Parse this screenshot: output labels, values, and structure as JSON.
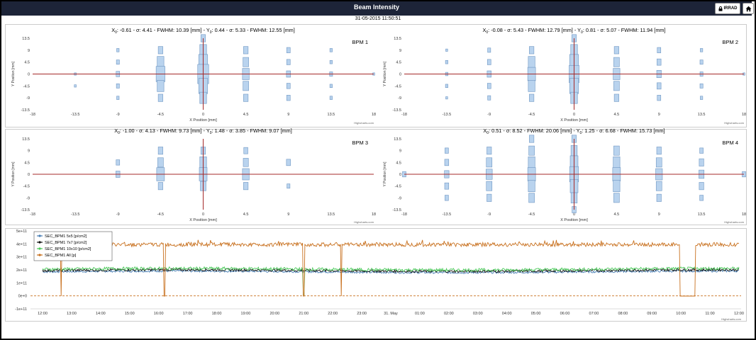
{
  "header": {
    "title": "Beam Intensity",
    "irrad_label": "IRRAD",
    "timestamp": "31-05-2015 11:50:51"
  },
  "credit": "Highcharts.com",
  "bpm_axes": {
    "xlabel": "X Position [mm]",
    "ylabel": "Y Position [mm]",
    "xticks": [
      "-18",
      "-13.5",
      "-9",
      "-4.5",
      "0",
      "4.5",
      "9",
      "13.5",
      "18"
    ],
    "yticks": [
      "13.5",
      "9",
      "4.5",
      "0",
      "-4.5",
      "-9",
      "-13.5"
    ],
    "xlim": [
      -18,
      18
    ],
    "ylim": [
      -13.5,
      13.5
    ],
    "marker_color": "#b9d3ee",
    "axis_line_color": "#a52a2a"
  },
  "chart_data": [
    {
      "type": "scatter",
      "name": "BPM 1",
      "stats": {
        "x0": "-0.61",
        "sx": "4.41",
        "fx": "10.39",
        "y0": "0.44",
        "sy": "5.33",
        "fy": "12.55"
      },
      "xlabel": "X Position [mm]",
      "ylabel": "Y Position [mm]",
      "xlim": [
        -18,
        18
      ],
      "ylim": [
        -13.5,
        13.5
      ],
      "points": [
        {
          "x": -13.5,
          "y": -4.5,
          "v": 0.5
        },
        {
          "x": -13.5,
          "y": 0,
          "v": 0.5
        },
        {
          "x": -9,
          "y": 9,
          "v": 1
        },
        {
          "x": -9,
          "y": 4.5,
          "v": 1.5
        },
        {
          "x": -9,
          "y": 0,
          "v": 2
        },
        {
          "x": -9,
          "y": -4.5,
          "v": 1.5
        },
        {
          "x": -9,
          "y": -9,
          "v": 1
        },
        {
          "x": -4.5,
          "y": 9,
          "v": 3
        },
        {
          "x": -4.5,
          "y": 4.5,
          "v": 5
        },
        {
          "x": -4.5,
          "y": 0,
          "v": 7
        },
        {
          "x": -4.5,
          "y": -4.5,
          "v": 5
        },
        {
          "x": -4.5,
          "y": -9,
          "v": 3
        },
        {
          "x": 0,
          "y": 13.5,
          "v": 3
        },
        {
          "x": 0,
          "y": 9,
          "v": 5
        },
        {
          "x": 0,
          "y": 4.5,
          "v": 7
        },
        {
          "x": 0,
          "y": 0,
          "v": 9
        },
        {
          "x": 0,
          "y": -4.5,
          "v": 7
        },
        {
          "x": 0,
          "y": -9,
          "v": 5
        },
        {
          "x": 4.5,
          "y": 9,
          "v": 3
        },
        {
          "x": 4.5,
          "y": 4.5,
          "v": 4
        },
        {
          "x": 4.5,
          "y": 0,
          "v": 5
        },
        {
          "x": 4.5,
          "y": -4.5,
          "v": 4
        },
        {
          "x": 4.5,
          "y": -9,
          "v": 3
        },
        {
          "x": 9,
          "y": 9,
          "v": 2
        },
        {
          "x": 9,
          "y": 4.5,
          "v": 2
        },
        {
          "x": 9,
          "y": 0,
          "v": 2.5
        },
        {
          "x": 9,
          "y": -4.5,
          "v": 2
        },
        {
          "x": 9,
          "y": -9,
          "v": 2
        },
        {
          "x": 13.5,
          "y": 9,
          "v": 1
        },
        {
          "x": 13.5,
          "y": 4.5,
          "v": 1
        },
        {
          "x": 13.5,
          "y": 0,
          "v": 1.5
        },
        {
          "x": 13.5,
          "y": -4.5,
          "v": 1
        },
        {
          "x": 13.5,
          "y": -9,
          "v": 1
        },
        {
          "x": 18,
          "y": 0,
          "v": 0.5
        }
      ]
    },
    {
      "type": "scatter",
      "name": "BPM 2",
      "stats": {
        "x0": "-0.08",
        "sx": "5.43",
        "fx": "12.79",
        "y0": "0.81",
        "sy": "5.07",
        "fy": "11.94"
      },
      "xlabel": "X Position [mm]",
      "ylabel": "Y Position [mm]",
      "xlim": [
        -18,
        18
      ],
      "ylim": [
        -13.5,
        13.5
      ],
      "points": [
        {
          "x": -13.5,
          "y": 9,
          "v": 0.5
        },
        {
          "x": -13.5,
          "y": 4.5,
          "v": 1
        },
        {
          "x": -13.5,
          "y": 0,
          "v": 1
        },
        {
          "x": -13.5,
          "y": -4.5,
          "v": 1
        },
        {
          "x": -13.5,
          "y": -9,
          "v": 0.5
        },
        {
          "x": -9,
          "y": 9,
          "v": 1.5
        },
        {
          "x": -9,
          "y": 4.5,
          "v": 2
        },
        {
          "x": -9,
          "y": 0,
          "v": 2.5
        },
        {
          "x": -9,
          "y": -4.5,
          "v": 2
        },
        {
          "x": -9,
          "y": -9,
          "v": 1.5
        },
        {
          "x": -4.5,
          "y": 9,
          "v": 3
        },
        {
          "x": -4.5,
          "y": 4.5,
          "v": 5
        },
        {
          "x": -4.5,
          "y": 0,
          "v": 6
        },
        {
          "x": -4.5,
          "y": -4.5,
          "v": 5
        },
        {
          "x": -4.5,
          "y": -9,
          "v": 3
        },
        {
          "x": 0,
          "y": 13.5,
          "v": 3
        },
        {
          "x": 0,
          "y": 9,
          "v": 5
        },
        {
          "x": 0,
          "y": 4.5,
          "v": 7
        },
        {
          "x": 0,
          "y": 0,
          "v": 8
        },
        {
          "x": 0,
          "y": -4.5,
          "v": 7
        },
        {
          "x": 0,
          "y": -9,
          "v": 5
        },
        {
          "x": 4.5,
          "y": 9,
          "v": 3
        },
        {
          "x": 4.5,
          "y": 4.5,
          "v": 4
        },
        {
          "x": 4.5,
          "y": 0,
          "v": 5
        },
        {
          "x": 4.5,
          "y": -4.5,
          "v": 4
        },
        {
          "x": 4.5,
          "y": -9,
          "v": 3
        },
        {
          "x": 9,
          "y": 9,
          "v": 2
        },
        {
          "x": 9,
          "y": 4.5,
          "v": 2.5
        },
        {
          "x": 9,
          "y": 0,
          "v": 3
        },
        {
          "x": 9,
          "y": -4.5,
          "v": 2.5
        },
        {
          "x": 9,
          "y": -9,
          "v": 2
        },
        {
          "x": 13.5,
          "y": 9,
          "v": 1
        },
        {
          "x": 13.5,
          "y": 4.5,
          "v": 1.5
        },
        {
          "x": 13.5,
          "y": 0,
          "v": 1.5
        },
        {
          "x": 13.5,
          "y": -4.5,
          "v": 1.5
        },
        {
          "x": 13.5,
          "y": -9,
          "v": 1
        },
        {
          "x": 18,
          "y": 0,
          "v": 0.5
        }
      ]
    },
    {
      "type": "scatter",
      "name": "BPM 3",
      "stats": {
        "x0": "-1.00",
        "sx": "4.13",
        "fx": "9.73",
        "y0": "1.48",
        "sy": "3.85",
        "fy": "9.07"
      },
      "xlabel": "X Position [mm]",
      "ylabel": "Y Position [mm]",
      "xlim": [
        -18,
        18
      ],
      "ylim": [
        -13.5,
        13.5
      ],
      "points": [
        {
          "x": -9,
          "y": 4.5,
          "v": 2
        },
        {
          "x": -9,
          "y": 0,
          "v": 2.5
        },
        {
          "x": -4.5,
          "y": 9,
          "v": 3
        },
        {
          "x": -4.5,
          "y": 4.5,
          "v": 4
        },
        {
          "x": -4.5,
          "y": 0,
          "v": 6
        },
        {
          "x": -4.5,
          "y": -4.5,
          "v": 3
        },
        {
          "x": 0,
          "y": 9,
          "v": 3
        },
        {
          "x": 0,
          "y": 4.5,
          "v": 5
        },
        {
          "x": 0,
          "y": 0,
          "v": 6
        },
        {
          "x": 0,
          "y": -4.5,
          "v": 4
        },
        {
          "x": 4.5,
          "y": 9,
          "v": 2.5
        },
        {
          "x": 4.5,
          "y": 4.5,
          "v": 3.5
        },
        {
          "x": 4.5,
          "y": 0,
          "v": 5
        },
        {
          "x": 4.5,
          "y": -4.5,
          "v": 3
        },
        {
          "x": 9,
          "y": 4.5,
          "v": 2.5
        },
        {
          "x": 9,
          "y": -4.5,
          "v": 1.5
        }
      ]
    },
    {
      "type": "scatter",
      "name": "BPM 4",
      "stats": {
        "x0": "0.51",
        "sx": "8.52",
        "fx": "20.06",
        "y0": "1.25",
        "sy": "6.68",
        "fy": "15.73"
      },
      "xlabel": "X Position [mm]",
      "ylabel": "Y Position [mm]",
      "xlim": [
        -18,
        18
      ],
      "ylim": [
        -13.5,
        13.5
      ],
      "points": [
        {
          "x": -18,
          "y": 0,
          "v": 2
        },
        {
          "x": -13.5,
          "y": 9,
          "v": 2
        },
        {
          "x": -13.5,
          "y": 4.5,
          "v": 2.5
        },
        {
          "x": -13.5,
          "y": 0,
          "v": 3
        },
        {
          "x": -13.5,
          "y": -4.5,
          "v": 2.5
        },
        {
          "x": -13.5,
          "y": -9,
          "v": 2
        },
        {
          "x": -9,
          "y": 9,
          "v": 3
        },
        {
          "x": -9,
          "y": 4.5,
          "v": 4
        },
        {
          "x": -9,
          "y": 0,
          "v": 4.5
        },
        {
          "x": -9,
          "y": -4.5,
          "v": 4
        },
        {
          "x": -9,
          "y": -9,
          "v": 3
        },
        {
          "x": -4.5,
          "y": 13.5,
          "v": 3
        },
        {
          "x": -4.5,
          "y": 9,
          "v": 4
        },
        {
          "x": -4.5,
          "y": 4.5,
          "v": 5
        },
        {
          "x": -4.5,
          "y": 0,
          "v": 6
        },
        {
          "x": -4.5,
          "y": -4.5,
          "v": 5
        },
        {
          "x": -4.5,
          "y": -9,
          "v": 4
        },
        {
          "x": 0,
          "y": 13.5,
          "v": 3
        },
        {
          "x": 0,
          "y": 9,
          "v": 4.5
        },
        {
          "x": 0,
          "y": 4.5,
          "v": 6
        },
        {
          "x": 0,
          "y": 0,
          "v": 7
        },
        {
          "x": 0,
          "y": -4.5,
          "v": 6
        },
        {
          "x": 0,
          "y": -9,
          "v": 4.5
        },
        {
          "x": 0,
          "y": -13.5,
          "v": 2.5
        },
        {
          "x": 4.5,
          "y": 9,
          "v": 4
        },
        {
          "x": 4.5,
          "y": 4.5,
          "v": 5
        },
        {
          "x": 4.5,
          "y": 0,
          "v": 6
        },
        {
          "x": 4.5,
          "y": -4.5,
          "v": 5
        },
        {
          "x": 4.5,
          "y": -9,
          "v": 4
        },
        {
          "x": 9,
          "y": 9,
          "v": 3
        },
        {
          "x": 9,
          "y": 4.5,
          "v": 4
        },
        {
          "x": 9,
          "y": 0,
          "v": 5
        },
        {
          "x": 9,
          "y": -4.5,
          "v": 4
        },
        {
          "x": 9,
          "y": -9,
          "v": 3
        },
        {
          "x": 13.5,
          "y": 9,
          "v": 2
        },
        {
          "x": 13.5,
          "y": 4.5,
          "v": 3
        },
        {
          "x": 13.5,
          "y": 0,
          "v": 3.5
        },
        {
          "x": 13.5,
          "y": -4.5,
          "v": 3
        },
        {
          "x": 13.5,
          "y": -9,
          "v": 2
        },
        {
          "x": 18,
          "y": 0,
          "v": 2
        }
      ]
    },
    {
      "type": "line",
      "ylim": [
        -100000000000.0,
        500000000000.0
      ],
      "yticks": [
        "5e+11",
        "4e+11",
        "3e+11",
        "2e+11",
        "1e+11",
        "0e+0",
        "-1e+11"
      ],
      "xticks": [
        "12:00",
        "13:00",
        "14:00",
        "15:00",
        "16:00",
        "17:00",
        "18:00",
        "19:00",
        "20:00",
        "21:00",
        "22:00",
        "23:00",
        "31. May",
        "01:00",
        "02:00",
        "03:00",
        "04:00",
        "05:00",
        "06:00",
        "07:00",
        "08:00",
        "09:00",
        "10:00",
        "11:00",
        "12:00"
      ],
      "series": [
        {
          "name": "SEC_BPM1 5x5 [p/cm2]",
          "color": "#4a7fb5",
          "base": 185000000000.0,
          "noise": 8000000000.0
        },
        {
          "name": "SEC_BPM1 7x7 [p/cm2]",
          "color": "#111111",
          "base": 195000000000.0,
          "noise": 10000000000.0
        },
        {
          "name": "SEC_BPM1 10x10 [p/cm2]",
          "color": "#4bc95a",
          "base": 205000000000.0,
          "noise": 12000000000.0
        },
        {
          "name": "SEC_BPM1 All [p]",
          "color": "#c8701e",
          "base": 395000000000.0,
          "noise": 15000000000.0
        }
      ],
      "dropouts_hours": [
        0.65,
        4.2,
        9.0,
        10.3,
        22.05,
        22.3,
        22.45
      ],
      "gap_hours": [
        21.95,
        22.5
      ],
      "dashed_zero_color": "#c8701e"
    }
  ]
}
